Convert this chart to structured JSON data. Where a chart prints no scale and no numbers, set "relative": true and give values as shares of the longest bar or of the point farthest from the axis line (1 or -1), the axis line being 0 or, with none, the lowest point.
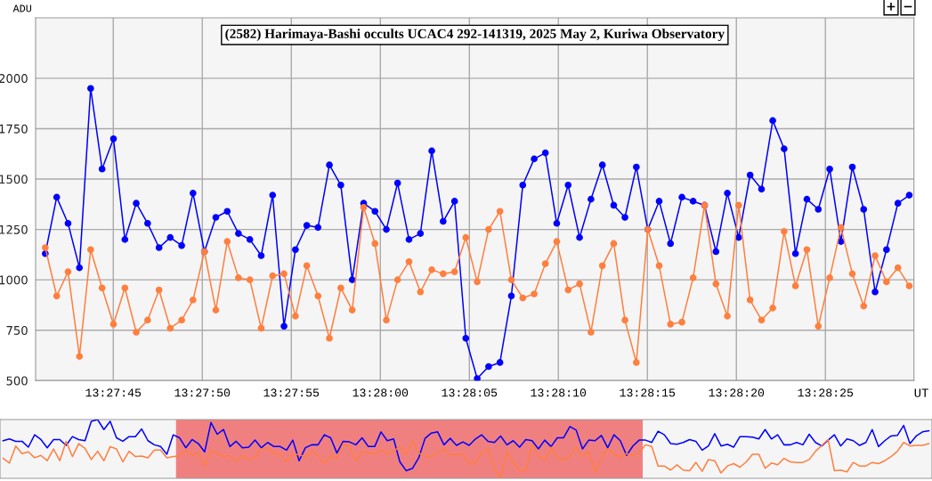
{
  "chart_data": [
    {
      "type": "line",
      "title": "(2582) Harimaya-Bashi occults UCAC4 292-141319, 2025 May 2, Kuriwa Observatory",
      "xlabel": "UT",
      "ylabel": "ADU",
      "annotations": [
        "+",
        "−"
      ],
      "grid": true,
      "marker": "circle",
      "x": [
        13.461439,
        13.461617,
        13.461794,
        13.461972,
        13.462147,
        13.462325,
        13.462503,
        13.462681,
        13.462858,
        13.463036,
        13.463214,
        13.463389,
        13.463567,
        13.463744,
        13.463922,
        13.4641,
        13.464278,
        13.464453,
        13.464631,
        13.464808,
        13.464986,
        13.465164,
        13.465342,
        13.465519,
        13.465694,
        13.465872,
        13.46605,
        13.466228,
        13.466406,
        13.466583,
        13.466761,
        13.466936,
        13.467114,
        13.467292,
        13.467469,
        13.467647,
        13.467825,
        13.468,
        13.468178,
        13.468356,
        13.468533,
        13.468711,
        13.468889,
        13.469067,
        13.469242,
        13.469419,
        13.469597,
        13.469775,
        13.469953,
        13.470131,
        13.470308,
        13.470483,
        13.470661,
        13.470839,
        13.471017,
        13.471194,
        13.471372,
        13.471547,
        13.471725,
        13.471903,
        13.472081,
        13.472258,
        13.472436,
        13.472614,
        13.472789,
        13.472967,
        13.473144,
        13.473322,
        13.4735,
        13.473678,
        13.473853,
        13.474031,
        13.474208,
        13.474386,
        13.474564,
        13.474742,
        13.474919
      ],
      "series": [
        {
          "color": "#0000ff",
          "values": [
            1130,
            1410,
            1280,
            1060,
            1950,
            1550,
            1700,
            1200,
            1380,
            1280,
            1160,
            1210,
            1170,
            1430,
            1140,
            1310,
            1340,
            1230,
            1200,
            1120,
            1420,
            770,
            1150,
            1270,
            1260,
            1570,
            1470,
            1000,
            1380,
            1340,
            1250,
            1480,
            1200,
            1230,
            1640,
            1290,
            1390,
            710,
            510,
            570,
            590,
            920,
            1470,
            1600,
            1630,
            1280,
            1470,
            1210,
            1400,
            1570,
            1370,
            1310,
            1560,
            1250,
            1390,
            1180,
            1410,
            1390,
            1370,
            1140,
            1430,
            1210,
            1520,
            1450,
            1790,
            1650,
            1130,
            1400,
            1350,
            1550,
            1190,
            1560,
            1350,
            940,
            1150,
            1380,
            1420
          ]
        },
        {
          "color": "#ff7f3f",
          "values": [
            1160,
            920,
            1040,
            620,
            1150,
            960,
            780,
            960,
            740,
            800,
            950,
            760,
            800,
            900,
            1140,
            850,
            1190,
            1010,
            1000,
            760,
            1020,
            1030,
            820,
            1070,
            920,
            710,
            960,
            850,
            1360,
            1180,
            800,
            1000,
            1090,
            940,
            1050,
            1030,
            1040,
            1210,
            990,
            1250,
            1340,
            1000,
            910,
            930,
            1080,
            1190,
            950,
            980,
            740,
            1070,
            1180,
            800,
            590,
            1250,
            1070,
            780,
            790,
            1010,
            1370,
            980,
            820,
            1370,
            900,
            800,
            860,
            1240,
            970,
            1150,
            770,
            1010,
            1260,
            1030,
            870,
            1120,
            990,
            1060,
            970
          ]
        }
      ],
      "xlim": [
        13.461288,
        13.474992
      ],
      "ylim": [
        500,
        2300
      ],
      "xticks": [
        {
          "value": 13.4625,
          "label": "13:27:45"
        },
        {
          "value": 13.463889,
          "label": "13:27:50"
        },
        {
          "value": 13.465278,
          "label": "13:27:55"
        },
        {
          "value": 13.466667,
          "label": "13:28:00"
        },
        {
          "value": 13.468056,
          "label": "13:28:05"
        },
        {
          "value": 13.469444,
          "label": "13:28:10"
        },
        {
          "value": 13.470833,
          "label": "13:28:15"
        },
        {
          "value": 13.472222,
          "label": "13:28:20"
        },
        {
          "value": 13.473611,
          "label": "13:28:25"
        }
      ],
      "yticks": [
        500,
        750,
        1000,
        1250,
        1500,
        1750,
        2000
      ]
    },
    {
      "type": "line",
      "relative": true,
      "categories": [
        null,
        null,
        null,
        null,
        null,
        null,
        null,
        null,
        null,
        null,
        null,
        null,
        null,
        null,
        null,
        null,
        null,
        null,
        null,
        null,
        null,
        null,
        null,
        null,
        null,
        null,
        null,
        null,
        null,
        null,
        null,
        null,
        null,
        null,
        null,
        null,
        null,
        null,
        null,
        null,
        null,
        null,
        null,
        null,
        null,
        null,
        null,
        null,
        null,
        null,
        null,
        null,
        null,
        null,
        null,
        null,
        null,
        null,
        null,
        null,
        null,
        null,
        null,
        null,
        null,
        null,
        null,
        null,
        null,
        null,
        null,
        null,
        null,
        null,
        null,
        null,
        null,
        null,
        null,
        null,
        null,
        null,
        null,
        null,
        null,
        null,
        null,
        null,
        null,
        null,
        null,
        null,
        null,
        null,
        null,
        null,
        null,
        null,
        null,
        null,
        null,
        null,
        null,
        null,
        null,
        null,
        null,
        null,
        null,
        null,
        null,
        null,
        null,
        null,
        null,
        null,
        null,
        null,
        null,
        null,
        null,
        null,
        null,
        null,
        null,
        null,
        null,
        null,
        null,
        null,
        null,
        null,
        null,
        null,
        null,
        null,
        null,
        null,
        null,
        null,
        null,
        null,
        null,
        null,
        null,
        null,
        null,
        null
      ],
      "series": [
        {
          "color": "#0000ff",
          "values": [
            0.64,
            0.67,
            0.63,
            0.63,
            0.53,
            0.74,
            0.66,
            0.52,
            0.66,
            0.66,
            0.56,
            0.71,
            0.66,
            0.64,
            0.97,
            1.0,
            0.83,
            0.97,
            0.69,
            0.63,
            0.71,
            0.71,
            0.84,
            0.64,
            0.57,
            0.54,
            0.41,
            0.74,
            0.69,
            0.52,
            0.66,
            0.59,
            0.45,
            0.95,
            0.75,
            0.83,
            0.54,
            0.63,
            0.52,
            0.53,
            0.65,
            0.52,
            0.61,
            0.54,
            0.54,
            0.48,
            0.65,
            0.3,
            0.52,
            0.57,
            0.57,
            0.74,
            0.69,
            0.43,
            0.63,
            0.62,
            0.57,
            0.69,
            0.54,
            0.54,
            0.79,
            0.64,
            0.67,
            0.28,
            0.13,
            0.17,
            0.35,
            0.68,
            0.77,
            0.79,
            0.57,
            0.68,
            0.56,
            0.62,
            0.56,
            0.67,
            0.74,
            0.63,
            0.61,
            0.72,
            0.57,
            0.64,
            0.53,
            0.66,
            0.64,
            0.5,
            0.65,
            0.54,
            0.69,
            0.69,
            0.88,
            0.82,
            0.5,
            0.65,
            0.64,
            0.73,
            0.52,
            0.74,
            0.64,
            0.39,
            0.55,
            0.65,
            0.65,
            0.61,
            0.8,
            0.74,
            0.59,
            0.58,
            0.61,
            0.66,
            0.63,
            0.48,
            0.55,
            0.76,
            0.55,
            0.58,
            0.53,
            0.71,
            0.71,
            0.7,
            0.67,
            0.83,
            0.67,
            0.74,
            0.57,
            0.57,
            0.61,
            0.57,
            0.75,
            0.61,
            0.55,
            0.65,
            0.74,
            0.55,
            0.67,
            0.64,
            0.56,
            0.61,
            0.83,
            0.54,
            0.64,
            0.72,
            0.73,
            0.9,
            0.59,
            0.72,
            0.79,
            0.81
          ]
        },
        {
          "color": "#ff7f3f",
          "values": [
            0.34,
            0.26,
            0.55,
            0.42,
            0.45,
            0.35,
            0.39,
            0.3,
            0.5,
            0.3,
            0.63,
            0.37,
            0.59,
            0.51,
            0.32,
            0.46,
            0.3,
            0.54,
            0.5,
            0.28,
            0.46,
            0.37,
            0.38,
            0.35,
            0.48,
            0.48,
            0.35,
            0.37,
            0.38,
            0.48,
            0.39,
            0.43,
            0.21,
            0.48,
            0.41,
            0.37,
            0.39,
            0.29,
            0.39,
            0.32,
            0.35,
            0.5,
            0.52,
            0.43,
            0.41,
            0.28,
            0.4,
            0.41,
            0.35,
            0.46,
            0.38,
            0.25,
            0.39,
            0.34,
            0.59,
            0.54,
            0.3,
            0.45,
            0.43,
            0.41,
            0.48,
            0.42,
            0.46,
            0.54,
            0.41,
            0.63,
            0.43,
            0.37,
            0.37,
            0.43,
            0.5,
            0.4,
            0.4,
            0.41,
            0.24,
            0.27,
            0.43,
            0.5,
            0.16,
            0.0,
            0.46,
            0.27,
            0.13,
            0.13,
            0.59,
            0.39,
            0.3,
            0.53,
            0.36,
            0.3,
            0.37,
            0.54,
            0.37,
            0.46,
            0.11,
            0.35,
            0.5,
            0.41,
            0.36,
            0.42,
            0.39,
            0.43,
            0.57,
            0.54,
            0.21,
            0.21,
            0.14,
            0.23,
            0.14,
            0.13,
            0.27,
            0.12,
            0.32,
            0.3,
            0.09,
            0.21,
            0.25,
            0.19,
            0.28,
            0.41,
            0.41,
            0.17,
            0.26,
            0.23,
            0.34,
            0.28,
            0.27,
            0.27,
            0.32,
            0.46,
            0.56,
            0.66,
            0.13,
            0.14,
            0.11,
            0.27,
            0.21,
            0.21,
            0.27,
            0.25,
            0.3,
            0.37,
            0.46,
            0.61,
            0.55,
            0.56,
            0.56,
            0.59
          ]
        }
      ]
    }
  ]
}
